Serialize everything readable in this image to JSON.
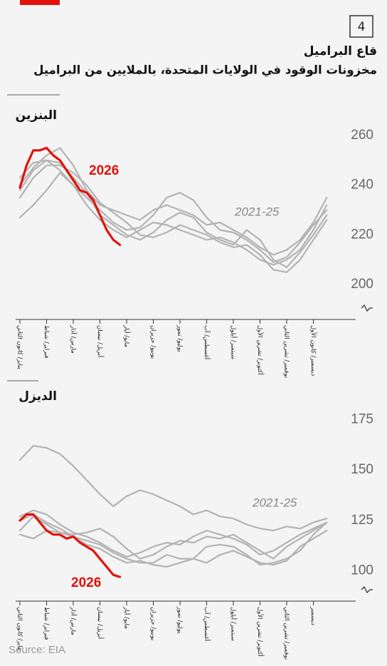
{
  "header": {
    "number": "4",
    "title": "قاع البراميل",
    "subtitle": "مخزونات الوقود في الولايات المتحدة، بالملايين من البراميل"
  },
  "source": "Source: EIA",
  "chart_data": [
    {
      "type": "line",
      "title": "البنزين",
      "xlim": [
        0,
        12
      ],
      "ylim": [
        186,
        262
      ],
      "yticks": [
        200,
        220,
        240,
        260
      ],
      "grid": false,
      "xticks": [
        {
          "value": 0,
          "label": "يناير/ كانون الثاني"
        },
        {
          "value": 1,
          "label": "فبراير/ شباط"
        },
        {
          "value": 2,
          "label": "مارس/ آذار"
        },
        {
          "value": 3,
          "label": "أبريل/ نيسان"
        },
        {
          "value": 4,
          "label": "مايو/ أيار"
        },
        {
          "value": 5,
          "label": "يونيو/ حزيران"
        },
        {
          "value": 6,
          "label": "يوليو/ تموز"
        },
        {
          "value": 7,
          "label": "أغسطس/ آب"
        },
        {
          "value": 8,
          "label": "سبتمبر/ أيلول"
        },
        {
          "value": 9,
          "label": "أكتوبر/ تشرين الأول"
        },
        {
          "value": 10,
          "label": "نوفمبر/ تشرين الثاني"
        },
        {
          "value": 11,
          "label": "ديسمبر/ كانون الأول"
        }
      ],
      "series": [
        {
          "name": "2021-25",
          "color": "#b3b3b3",
          "x": [
            0,
            0.5,
            1,
            1.5,
            2,
            2.5,
            3,
            3.5,
            4,
            4.5,
            5,
            5.5,
            6,
            6.5,
            7,
            7.5,
            8,
            8.5,
            9,
            9.5,
            10,
            10.5,
            11,
            11.5
          ],
          "values": [
            [
              227,
              232,
              238,
              245,
              240,
              232,
              226,
              222,
              219,
              222,
              225,
              224,
              222,
              220,
              218,
              219,
              217,
              214,
              210,
              208,
              210,
              214,
              222,
              232
            ],
            [
              240,
              247,
              252,
              255,
              248,
              238,
              232,
              230,
              228,
              226,
              230,
              232,
              230,
              228,
              224,
              225,
              222,
              219,
              215,
              212,
              214,
              218,
              225,
              235
            ],
            [
              243,
              249,
              250,
              246,
              240,
              235,
              230,
              225,
              222,
              223,
              228,
              235,
              237,
              234,
              227,
              222,
              221,
              218,
              214,
              209,
              211,
              217,
              224,
              230
            ],
            [
              238,
              246,
              250,
              249,
              243,
              237,
              228,
              224,
              220,
              218,
              221,
              226,
              229,
              227,
              221,
              218,
              216,
              222,
              218,
              210,
              207,
              213,
              220,
              228
            ],
            [
              235,
              243,
              248,
              248,
              245,
              240,
              233,
              229,
              225,
              220,
              219,
              221,
              224,
              222,
              220,
              217,
              215,
              216,
              212,
              206,
              205,
              210,
              218,
              226
            ]
          ]
        },
        {
          "name": "2026",
          "color": "#e3120b",
          "x": [
            0,
            0.25,
            0.5,
            0.75,
            1,
            1.25,
            1.5,
            1.75,
            2,
            2.25,
            2.5,
            2.75,
            3,
            3.25,
            3.5,
            3.75
          ],
          "values": [
            239,
            248,
            254,
            254,
            255,
            252,
            250,
            246,
            242,
            238,
            237,
            234,
            228,
            222,
            218,
            216
          ]
        }
      ]
    },
    {
      "type": "line",
      "title": "الديزل",
      "xlim": [
        0,
        12
      ],
      "ylim": [
        85,
        178
      ],
      "yticks": [
        100,
        125,
        150,
        175
      ],
      "grid": false,
      "xticks": [
        {
          "value": 0,
          "label": "يناير/ كانون الثاني"
        },
        {
          "value": 1,
          "label": "فبراير/ شباط"
        },
        {
          "value": 2,
          "label": "مارس/ آذار"
        },
        {
          "value": 3,
          "label": "أبريل/ نيسان"
        },
        {
          "value": 4,
          "label": "مايو/ أيار"
        },
        {
          "value": 5,
          "label": "يونيو/ حزيران"
        },
        {
          "value": 6,
          "label": "يوليو/ تموز"
        },
        {
          "value": 7,
          "label": "أغسطس/ آب"
        },
        {
          "value": 8,
          "label": "سبتمبر/ أيلول"
        },
        {
          "value": 9,
          "label": "أكتوبر/ تشرين الأول"
        },
        {
          "value": 10,
          "label": "نوفمبر/ تشرين الثاني"
        },
        {
          "value": 11,
          "label": "ديسمبر"
        }
      ],
      "series": [
        {
          "name": "2021-25",
          "color": "#b3b3b3",
          "x": [
            0,
            0.5,
            1,
            1.5,
            2,
            2.5,
            3,
            3.5,
            4,
            4.5,
            5,
            5.5,
            6,
            6.5,
            7,
            7.5,
            8,
            8.5,
            9,
            9.5,
            10,
            10.5,
            11,
            11.5
          ],
          "values": [
            [
              155,
              162,
              161,
              158,
              152,
              145,
              138,
              132,
              137,
              140,
              138,
              135,
              132,
              128,
              130,
              127,
              126,
              123,
              121,
              120,
              122,
              121,
              124,
              126
            ],
            [
              127,
              130,
              128,
              123,
              119,
              117,
              114,
              110,
              107,
              109,
              112,
              114,
              113,
              117,
              120,
              118,
              116,
              113,
              108,
              110,
              114,
              118,
              121,
              124
            ],
            [
              118,
              116,
              120,
              119,
              118,
              119,
              121,
              117,
              111,
              106,
              108,
              112,
              115,
              114,
              117,
              116,
              118,
              114,
              110,
              106,
              112,
              116,
              120,
              124
            ],
            [
              125,
              128,
              124,
              121,
              117,
              115,
              113,
              109,
              106,
              104,
              104,
              108,
              106,
              106,
              112,
              113,
              112,
              108,
              103,
              104,
              106,
              110,
              118,
              124
            ],
            [
              120,
              127,
              123,
              119,
              117,
              113,
              111,
              107,
              104,
              105,
              103,
              102,
              104,
              106,
              104,
              108,
              110,
              107,
              104,
              103,
              105,
              112,
              116,
              120
            ]
          ]
        },
        {
          "name": "2026",
          "color": "#e3120b",
          "x": [
            0,
            0.25,
            0.5,
            0.75,
            1,
            1.25,
            1.5,
            1.75,
            2,
            2.25,
            2.5,
            2.75,
            3,
            3.25,
            3.5,
            3.75
          ],
          "values": [
            125,
            128,
            128,
            124,
            120,
            118,
            118,
            116,
            117,
            114,
            112,
            110,
            106,
            102,
            98,
            97
          ]
        }
      ]
    }
  ]
}
